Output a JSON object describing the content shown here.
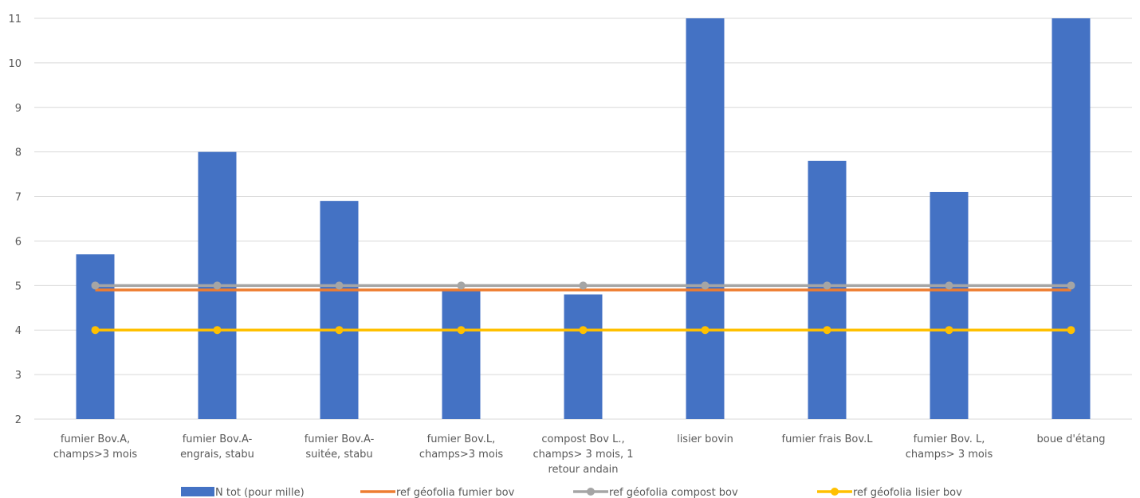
{
  "chart_data": {
    "type": "bar",
    "categories": [
      [
        "fumier Bov.A,",
        "champs>3 mois"
      ],
      [
        "fumier Bov.A-",
        "engrais, stabu"
      ],
      [
        "fumier Bov.A-",
        "suitée, stabu"
      ],
      [
        "fumier Bov.L,",
        "champs>3 mois"
      ],
      [
        "compost Bov L.,",
        "champs> 3 mois, 1",
        "retour andain"
      ],
      [
        "lisier bovin"
      ],
      [
        "fumier frais Bov.L"
      ],
      [
        "fumier Bov. L,",
        "champs> 3 mois"
      ],
      [
        "boue d'étang"
      ]
    ],
    "ylim": [
      2,
      11
    ],
    "yticks": [
      2,
      3,
      4,
      5,
      6,
      7,
      8,
      9,
      10,
      11
    ],
    "grid": true,
    "legend_position": "bottom",
    "bar_series": {
      "name": "N tot (pour mille)",
      "color": "#4472c4",
      "values": [
        5.7,
        8.0,
        6.9,
        4.9,
        4.8,
        11.0,
        7.8,
        7.1,
        11.0
      ]
    },
    "line_series": [
      {
        "name": "ref géofolia fumier bov",
        "color": "#ed7d31",
        "markers": false,
        "values": [
          4.9,
          4.9,
          4.9,
          4.9,
          4.9,
          4.9,
          4.9,
          4.9,
          4.9
        ]
      },
      {
        "name": "ref géofolia compost bov",
        "color": "#a5a5a5",
        "markers": true,
        "values": [
          5,
          5,
          5,
          5,
          5,
          5,
          5,
          5,
          5
        ]
      },
      {
        "name": "ref géofolia lisier bov",
        "color": "#ffc000",
        "markers": true,
        "values": [
          4,
          4,
          4,
          4,
          4,
          4,
          4,
          4,
          4
        ]
      }
    ]
  }
}
